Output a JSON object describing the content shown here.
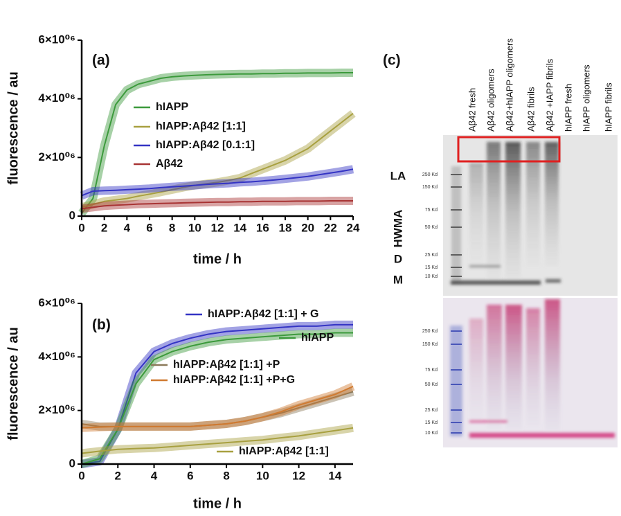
{
  "chart_data": [
    {
      "type": "line",
      "panel_label": "(a)",
      "xlabel": "time / h",
      "ylabel": "fluorescence / au",
      "x": [
        0,
        1,
        2,
        3,
        4,
        5,
        6,
        7,
        8,
        9,
        10,
        11,
        12,
        13,
        14,
        15,
        16,
        17,
        18,
        19,
        20,
        21,
        22,
        23,
        24
      ],
      "xlim": [
        0,
        24
      ],
      "xticks": [
        0,
        2,
        4,
        6,
        8,
        10,
        12,
        14,
        16,
        18,
        20,
        22,
        24
      ],
      "ylim": [
        0,
        6000000
      ],
      "yticks": [
        0,
        {
          "value": 2000000,
          "label": "2×10⁰⁶"
        },
        {
          "value": 4000000,
          "label": "4×10⁰⁶"
        },
        {
          "value": 6000000,
          "label": "6×10⁰⁶"
        }
      ],
      "series": [
        {
          "name": "hIAPP",
          "color": "#3c9a3c",
          "values": [
            100000,
            600000,
            2400000,
            3800000,
            4300000,
            4500000,
            4600000,
            4700000,
            4750000,
            4780000,
            4800000,
            4820000,
            4830000,
            4840000,
            4850000,
            4850000,
            4860000,
            4860000,
            4870000,
            4870000,
            4880000,
            4880000,
            4880000,
            4890000,
            4890000
          ]
        },
        {
          "name": "hIAPP:Aβ42 [1:1]",
          "color": "#a8a040",
          "values": [
            300000,
            400000,
            500000,
            550000,
            600000,
            680000,
            750000,
            820000,
            900000,
            980000,
            1050000,
            1100000,
            1150000,
            1220000,
            1300000,
            1450000,
            1600000,
            1750000,
            1900000,
            2100000,
            2300000,
            2600000,
            2900000,
            3200000,
            3500000
          ]
        },
        {
          "name": "hIAPP:Aβ42 [0.1:1]",
          "color": "#3434c4",
          "values": [
            700000,
            850000,
            870000,
            880000,
            900000,
            920000,
            940000,
            970000,
            1000000,
            1020000,
            1050000,
            1080000,
            1100000,
            1120000,
            1150000,
            1170000,
            1200000,
            1230000,
            1270000,
            1310000,
            1350000,
            1410000,
            1470000,
            1530000,
            1600000
          ]
        },
        {
          "name": "Aβ42",
          "color": "#a83434",
          "values": [
            250000,
            300000,
            350000,
            370000,
            390000,
            410000,
            420000,
            430000,
            440000,
            450000,
            460000,
            470000,
            480000,
            480000,
            490000,
            490000,
            500000,
            500000,
            500000,
            510000,
            510000,
            510000,
            520000,
            520000,
            520000
          ]
        }
      ]
    },
    {
      "type": "line",
      "panel_label": "(b)",
      "xlabel": "time / h",
      "ylabel": "fluorescence / au",
      "x": [
        0,
        1,
        2,
        3,
        4,
        5,
        6,
        7,
        8,
        9,
        10,
        11,
        12,
        13,
        14,
        15
      ],
      "xlim": [
        0,
        15
      ],
      "xticks": [
        0,
        2,
        4,
        6,
        8,
        10,
        12,
        14
      ],
      "ylim": [
        0,
        6000000
      ],
      "yticks": [
        0,
        {
          "value": 2000000,
          "label": "2×10⁰⁶"
        },
        {
          "value": 4000000,
          "label": "4×10⁰⁶"
        },
        {
          "value": 6000000,
          "label": "6×10⁰⁶"
        }
      ],
      "series": [
        {
          "name": "hIAPP:Aβ42 [1:1] + G",
          "color": "#3434c4",
          "values": [
            0,
            100000,
            1300000,
            3400000,
            4200000,
            4500000,
            4700000,
            4850000,
            4950000,
            5000000,
            5050000,
            5100000,
            5150000,
            5150000,
            5200000,
            5200000
          ]
        },
        {
          "name": "hIAPP",
          "color": "#3c9a3c",
          "values": [
            0,
            200000,
            1300000,
            3000000,
            3900000,
            4200000,
            4400000,
            4550000,
            4650000,
            4700000,
            4750000,
            4800000,
            4850000,
            4850000,
            4900000,
            4900000
          ]
        },
        {
          "name": "hIAPP:Aβ42 [1:1] +P",
          "color": "#8b7a5a",
          "values": [
            1500000,
            1400000,
            1400000,
            1400000,
            1400000,
            1400000,
            1400000,
            1450000,
            1500000,
            1600000,
            1750000,
            1900000,
            2100000,
            2300000,
            2500000,
            2700000
          ]
        },
        {
          "name": "hIAPP:Aβ42 [1:1] +P+G",
          "color": "#d07a30",
          "values": [
            1350000,
            1380000,
            1400000,
            1400000,
            1400000,
            1400000,
            1400000,
            1450000,
            1500000,
            1600000,
            1750000,
            1950000,
            2200000,
            2400000,
            2600000,
            2900000
          ]
        },
        {
          "name": "hIAPP:Aβ42 [1:1]",
          "color": "#a8a040",
          "values": [
            400000,
            480000,
            550000,
            580000,
            600000,
            650000,
            700000,
            750000,
            800000,
            850000,
            900000,
            980000,
            1050000,
            1150000,
            1250000,
            1350000
          ]
        }
      ]
    }
  ],
  "gel": {
    "panel_label": "(c)",
    "lanes": [
      "Aβ42 fresh",
      "Aβ42 oligomers",
      "Aβ42+hIAPP oligomers",
      "Aβ42 fibrils",
      "Aβ42 +IAPP fibrils",
      "hIAPP fresh",
      "hIAPP oligomers",
      "hIAPP fibrils"
    ],
    "side_labels": [
      "LA",
      "HWMA",
      "D",
      "M"
    ],
    "blots": [
      {
        "markers": [
          "250 Kd",
          "150 Kd",
          "75 Kd",
          "50 Kd",
          "25 Kd",
          "15 Kd",
          "10 Kd"
        ]
      },
      {
        "markers": [
          "250 Kd",
          "150 Kd",
          "75 Kd",
          "50 Kd",
          "25 Kd",
          "15 Kd",
          "10 Kd"
        ]
      }
    ]
  }
}
